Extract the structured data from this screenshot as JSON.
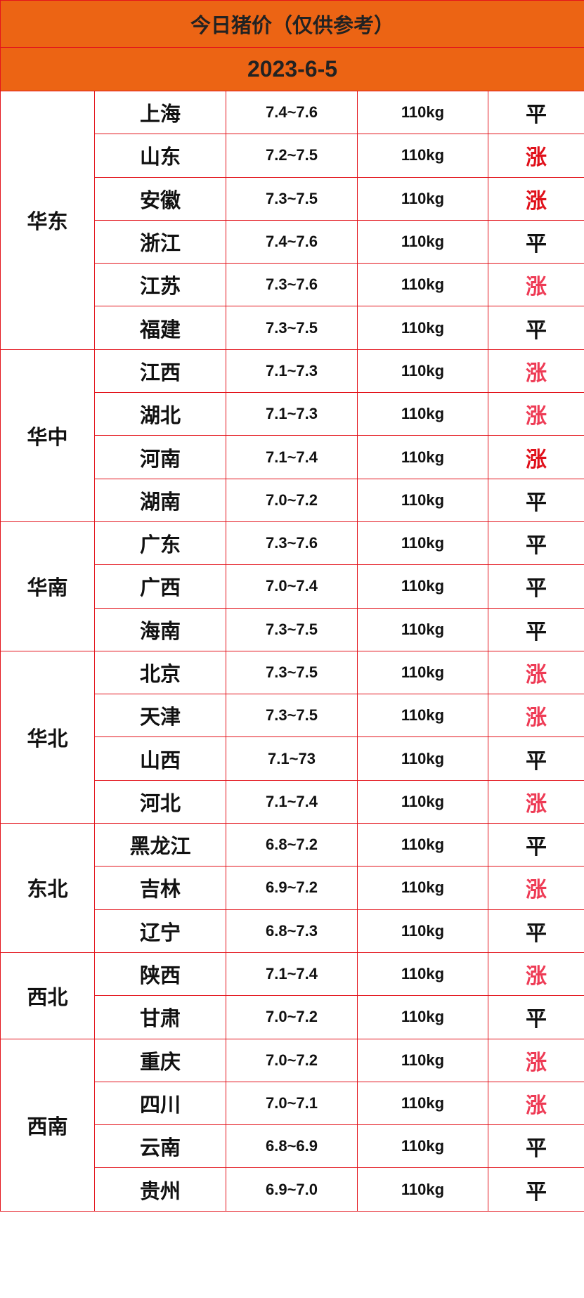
{
  "header": {
    "title": "今日猪价（仅供参考）",
    "date": "2023-6-5"
  },
  "table": {
    "regions": [
      {
        "name": "华东",
        "rows": [
          {
            "province": "上海",
            "price": "7.4~7.6",
            "weight": "110kg",
            "trend": "平",
            "trend_color": "#111111"
          },
          {
            "province": "山东",
            "price": "7.2~7.5",
            "weight": "110kg",
            "trend": "涨",
            "trend_color": "#e0101a"
          },
          {
            "province": "安徽",
            "price": "7.3~7.5",
            "weight": "110kg",
            "trend": "涨",
            "trend_color": "#e0101a"
          },
          {
            "province": "浙江",
            "price": "7.4~7.6",
            "weight": "110kg",
            "trend": "平",
            "trend_color": "#111111"
          },
          {
            "province": "江苏",
            "price": "7.3~7.6",
            "weight": "110kg",
            "trend": "涨",
            "trend_color": "#ee3b55"
          },
          {
            "province": "福建",
            "price": "7.3~7.5",
            "weight": "110kg",
            "trend": "平",
            "trend_color": "#111111"
          }
        ]
      },
      {
        "name": "华中",
        "rows": [
          {
            "province": "江西",
            "price": "7.1~7.3",
            "weight": "110kg",
            "trend": "涨",
            "trend_color": "#ee3b55"
          },
          {
            "province": "湖北",
            "price": "7.1~7.3",
            "weight": "110kg",
            "trend": "涨",
            "trend_color": "#ee3b55"
          },
          {
            "province": "河南",
            "price": "7.1~7.4",
            "weight": "110kg",
            "trend": "涨",
            "trend_color": "#e0101a"
          },
          {
            "province": "湖南",
            "price": "7.0~7.2",
            "weight": "110kg",
            "trend": "平",
            "trend_color": "#111111"
          }
        ]
      },
      {
        "name": "华南",
        "rows": [
          {
            "province": "广东",
            "price": "7.3~7.6",
            "weight": "110kg",
            "trend": "平",
            "trend_color": "#111111"
          },
          {
            "province": "广西",
            "price": "7.0~7.4",
            "weight": "110kg",
            "trend": "平",
            "trend_color": "#111111"
          },
          {
            "province": "海南",
            "price": "7.3~7.5",
            "weight": "110kg",
            "trend": "平",
            "trend_color": "#111111"
          }
        ]
      },
      {
        "name": "华北",
        "rows": [
          {
            "province": "北京",
            "price": "7.3~7.5",
            "weight": "110kg",
            "trend": "涨",
            "trend_color": "#ee3b55"
          },
          {
            "province": "天津",
            "price": "7.3~7.5",
            "weight": "110kg",
            "trend": "涨",
            "trend_color": "#ee3b55"
          },
          {
            "province": "山西",
            "price": "7.1~73",
            "weight": "110kg",
            "trend": "平",
            "trend_color": "#111111"
          },
          {
            "province": "河北",
            "price": "7.1~7.4",
            "weight": "110kg",
            "trend": "涨",
            "trend_color": "#ee3b55"
          }
        ]
      },
      {
        "name": "东北",
        "rows": [
          {
            "province": "黑龙江",
            "price": "6.8~7.2",
            "weight": "110kg",
            "trend": "平",
            "trend_color": "#111111"
          },
          {
            "province": "吉林",
            "price": "6.9~7.2",
            "weight": "110kg",
            "trend": "涨",
            "trend_color": "#ee3b55"
          },
          {
            "province": "辽宁",
            "price": "6.8~7.3",
            "weight": "110kg",
            "trend": "平",
            "trend_color": "#111111"
          }
        ]
      },
      {
        "name": "西北",
        "rows": [
          {
            "province": "陕西",
            "price": "7.1~7.4",
            "weight": "110kg",
            "trend": "涨",
            "trend_color": "#ee3b55"
          },
          {
            "province": "甘肃",
            "price": "7.0~7.2",
            "weight": "110kg",
            "trend": "平",
            "trend_color": "#111111"
          }
        ]
      },
      {
        "name": "西南",
        "rows": [
          {
            "province": "重庆",
            "price": "7.0~7.2",
            "weight": "110kg",
            "trend": "涨",
            "trend_color": "#ee3b55"
          },
          {
            "province": "四川",
            "price": "7.0~7.1",
            "weight": "110kg",
            "trend": "涨",
            "trend_color": "#ee3b55"
          },
          {
            "province": "云南",
            "price": "6.8~6.9",
            "weight": "110kg",
            "trend": "平",
            "trend_color": "#111111"
          },
          {
            "province": "贵州",
            "price": "6.9~7.0",
            "weight": "110kg",
            "trend": "平",
            "trend_color": "#111111"
          }
        ]
      }
    ]
  }
}
